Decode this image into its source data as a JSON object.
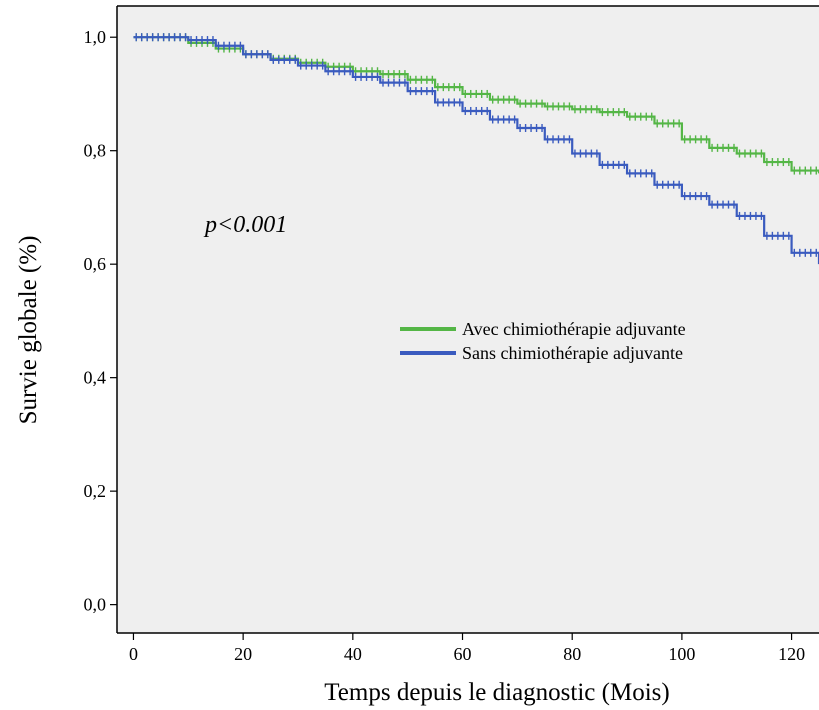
{
  "chart_data": {
    "type": "line",
    "title": "",
    "xlabel": "Temps depuis le diagnostic (Mois)",
    "ylabel": "Survie globale (%)",
    "xlim": [
      -3,
      125
    ],
    "ylim": [
      -0.05,
      1.055
    ],
    "x_ticks": [
      0,
      20,
      40,
      60,
      80,
      100,
      120
    ],
    "x_tick_labels": [
      "0",
      "20",
      "40",
      "60",
      "80",
      "100",
      "120"
    ],
    "y_ticks": [
      0.0,
      0.2,
      0.4,
      0.6,
      0.8,
      1.0
    ],
    "y_tick_labels": [
      "0,0",
      "0,2",
      "0,4",
      "0,6",
      "0,8",
      "1,0"
    ],
    "grid": false,
    "background_color": "#efefef",
    "legend_position": "center-right",
    "annotation": "p<0.001",
    "series": [
      {
        "name": "Avec chimiothérapie adjuvante",
        "color": "#54b646",
        "x": [
          0,
          5,
          10,
          15,
          20,
          25,
          30,
          35,
          40,
          45,
          50,
          55,
          60,
          65,
          70,
          75,
          80,
          85,
          90,
          95,
          100,
          105,
          110,
          115,
          120,
          125
        ],
        "y": [
          1.0,
          1.0,
          0.99,
          0.98,
          0.97,
          0.962,
          0.955,
          0.948,
          0.94,
          0.935,
          0.925,
          0.912,
          0.9,
          0.89,
          0.883,
          0.878,
          0.873,
          0.868,
          0.86,
          0.848,
          0.82,
          0.805,
          0.795,
          0.78,
          0.765,
          0.76
        ]
      },
      {
        "name": "Sans chimiothérapie adjuvante",
        "color": "#3a5bbf",
        "x": [
          0,
          5,
          10,
          15,
          20,
          25,
          30,
          35,
          40,
          45,
          50,
          55,
          60,
          65,
          70,
          75,
          80,
          85,
          90,
          95,
          100,
          105,
          110,
          115,
          120,
          125
        ],
        "y": [
          1.0,
          1.0,
          0.995,
          0.985,
          0.97,
          0.96,
          0.95,
          0.94,
          0.93,
          0.92,
          0.905,
          0.885,
          0.87,
          0.855,
          0.84,
          0.82,
          0.795,
          0.775,
          0.76,
          0.74,
          0.72,
          0.705,
          0.685,
          0.65,
          0.62,
          0.6
        ]
      }
    ]
  }
}
